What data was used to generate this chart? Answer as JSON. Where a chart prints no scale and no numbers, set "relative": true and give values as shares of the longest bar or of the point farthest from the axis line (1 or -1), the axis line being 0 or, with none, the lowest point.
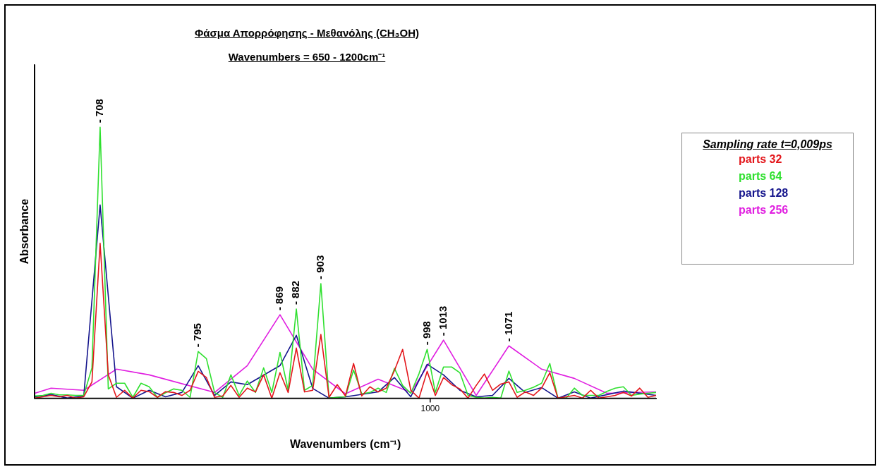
{
  "chart_data": {
    "type": "line",
    "title": "Φάσμα Απορρόφησης - Μεθανόλης (CH₃OH)",
    "subtitle": "Wavenumbers = 650 - 1200cm⁻¹",
    "xlabel": "Wavenumbers (cm⁻¹)",
    "ylabel": "Absorbance",
    "legend_title": "Sampling rate t=0,009ps",
    "relative": true,
    "marker": "none",
    "line_style": "solid",
    "categories": [
      null,
      null,
      null,
      null,
      null,
      null,
      null,
      null,
      null,
      null,
      null,
      null,
      null,
      null,
      null,
      null,
      null,
      null,
      null,
      null,
      null,
      null,
      null,
      null,
      null,
      null,
      null,
      null,
      null,
      null,
      null,
      null,
      null,
      null,
      null,
      null,
      null,
      null,
      null,
      null,
      null,
      null,
      null,
      null,
      null,
      null,
      null,
      null,
      null,
      null,
      null,
      null,
      null,
      null,
      null,
      null,
      null,
      null,
      null,
      null,
      null,
      null,
      null,
      null,
      null,
      null,
      null,
      null,
      null,
      null,
      null,
      null,
      null,
      null,
      null,
      null,
      null
    ],
    "series": [
      {
        "name": "parts 32",
        "color": "#e3161b",
        "values": [
          0,
          0.005,
          0.01,
          0.005,
          0.01,
          0,
          0.005,
          0.06,
          0.572,
          0.086,
          0.003,
          0.029,
          0,
          0.029,
          0.024,
          0.003,
          0.024,
          0.021,
          0.01,
          0.029,
          0.099,
          0.076,
          0.003,
          0.008,
          0.047,
          0.003,
          0.037,
          0.023,
          0.086,
          0,
          0.094,
          0.021,
          0.185,
          0.023,
          0.029,
          0.235,
          0.003,
          0.05,
          0.008,
          0.128,
          0.008,
          0.042,
          0.023,
          0.037,
          0.102,
          0.18,
          0.029,
          0,
          0.099,
          0.01,
          0.076,
          0.05,
          0.034,
          0,
          0.047,
          0.089,
          0.029,
          0.052,
          0.06,
          0.003,
          0.023,
          0.01,
          0.037,
          0.094,
          0,
          0.005,
          0.01,
          0,
          0.029,
          0,
          0.005,
          0.01,
          0.021,
          0.008,
          0.037,
          0.003,
          0.01
        ]
      },
      {
        "name": "parts 64",
        "color": "#2fe02f",
        "values": [
          0.008,
          0.01,
          0.018,
          0.012,
          0.012,
          0.01,
          0.01,
          0.112,
          1,
          0.034,
          0.055,
          0.055,
          0.003,
          0.055,
          0.042,
          0.003,
          0.02,
          0.034,
          0.029,
          0.003,
          0.172,
          0.146,
          0.021,
          0.003,
          0.086,
          0.01,
          0.063,
          0.021,
          0.112,
          0.021,
          0.169,
          0.029,
          0.329,
          0.029,
          0.047,
          0.423,
          0,
          0.003,
          0.005,
          0.104,
          0.016,
          0.021,
          0.037,
          0.021,
          0.11,
          0.047,
          0.018,
          0.09,
          0.18,
          0.021,
          0.115,
          0.115,
          0.094,
          0.01,
          0.003,
          0,
          0.003,
          0,
          0.1,
          0.021,
          0.029,
          0.04,
          0.055,
          0.128,
          0,
          0,
          0.037,
          0.01,
          0.01,
          0.01,
          0.025,
          0.037,
          0.042,
          0.01,
          0.015,
          0.018,
          0.021
        ]
      },
      {
        "name": "parts 128",
        "color": "#14148c",
        "values": [
          0.005,
          null,
          0.013,
          null,
          0,
          null,
          0.008,
          null,
          0.713,
          null,
          0.042,
          null,
          0,
          null,
          0.029,
          null,
          0.005,
          null,
          0.021,
          null,
          0.12,
          null,
          0.01,
          null,
          0.06,
          null,
          0.05,
          null,
          null,
          null,
          0.12,
          null,
          0.232,
          null,
          0.036,
          null,
          0,
          null,
          0.005,
          null,
          null,
          null,
          0.023,
          null,
          0.076,
          null,
          0.005,
          null,
          0.125,
          null,
          0.086,
          null,
          0.029,
          null,
          0.005,
          null,
          0.01,
          null,
          0.073,
          null,
          0.021,
          null,
          0.039,
          null,
          0,
          null,
          0.023,
          null,
          0,
          null,
          null,
          null,
          0.026,
          null,
          null,
          null,
          0.01
        ]
      },
      {
        "name": "parts 256",
        "color": "#e01ee0",
        "values": [
          0.018,
          null,
          0.037,
          null,
          null,
          null,
          0.029,
          null,
          null,
          null,
          0.107,
          null,
          null,
          null,
          0.086,
          null,
          null,
          null,
          null,
          null,
          null,
          null,
          0.021,
          null,
          null,
          null,
          0.12,
          null,
          null,
          null,
          0.308,
          null,
          null,
          null,
          0.107,
          null,
          null,
          null,
          0.016,
          null,
          null,
          null,
          0.07,
          null,
          null,
          null,
          0.021,
          null,
          null,
          null,
          0.214,
          null,
          null,
          null,
          0.01,
          null,
          null,
          null,
          0.193,
          null,
          null,
          null,
          0.107,
          null,
          null,
          null,
          0.073,
          null,
          null,
          null,
          0.018,
          null,
          null,
          null,
          null,
          null,
          0.023
        ]
      }
    ],
    "annotations": [
      "1000",
      {
        "text": "- 708",
        "y": 1
      },
      {
        "text": "- 795",
        "y": 0.172
      },
      {
        "text": "- 869",
        "y": 0.308
      },
      {
        "text": "- 882",
        "y": 0.329
      },
      {
        "text": "- 903",
        "y": 0.423
      },
      {
        "text": "- 998",
        "y": 0.18
      },
      {
        "text": "- 1013",
        "y": 0.214
      },
      {
        "text": "- 1071",
        "y": 0.193
      }
    ]
  }
}
